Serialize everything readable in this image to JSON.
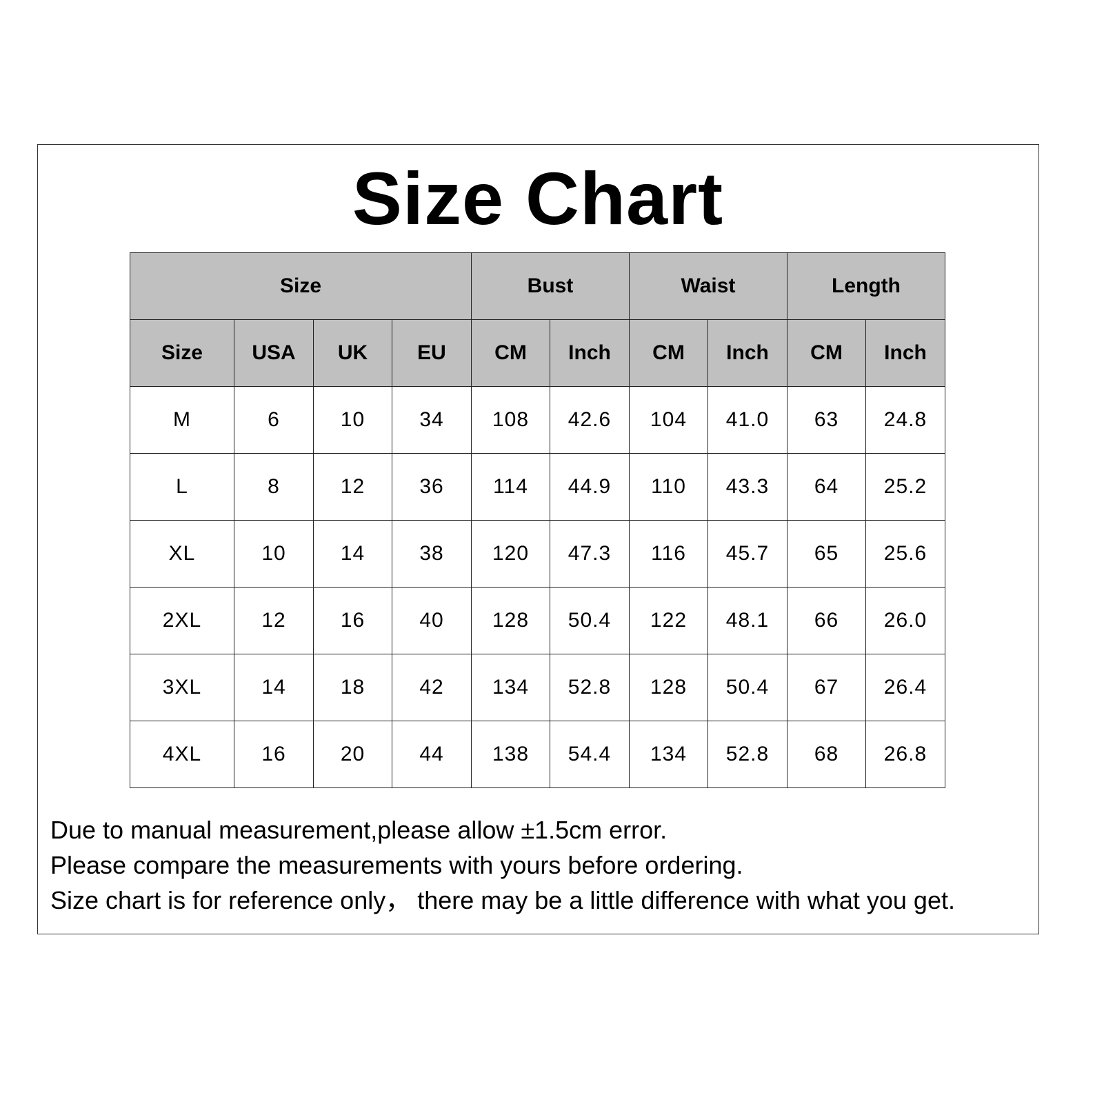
{
  "title": "Size Chart",
  "table": {
    "group_headers": [
      "Size",
      "Bust",
      "Waist",
      "Length"
    ],
    "sub_headers": [
      "Size",
      "USA",
      "UK",
      "EU",
      "CM",
      "Inch",
      "CM",
      "Inch",
      "CM",
      "Inch"
    ],
    "rows": [
      [
        "M",
        "6",
        "10",
        "34",
        "108",
        "42.6",
        "104",
        "41.0",
        "63",
        "24.8"
      ],
      [
        "L",
        "8",
        "12",
        "36",
        "114",
        "44.9",
        "110",
        "43.3",
        "64",
        "25.2"
      ],
      [
        "XL",
        "10",
        "14",
        "38",
        "120",
        "47.3",
        "116",
        "45.7",
        "65",
        "25.6"
      ],
      [
        "2XL",
        "12",
        "16",
        "40",
        "128",
        "50.4",
        "122",
        "48.1",
        "66",
        "26.0"
      ],
      [
        "3XL",
        "14",
        "18",
        "42",
        "134",
        "52.8",
        "128",
        "50.4",
        "67",
        "26.4"
      ],
      [
        "4XL",
        "16",
        "20",
        "44",
        "138",
        "54.4",
        "134",
        "52.8",
        "68",
        "26.8"
      ]
    ]
  },
  "notes": [
    "Due to manual measurement,please allow ±1.5cm error.",
    "Please compare the measurements with yours before ordering.",
    "Size chart is for reference only， there may be a little difference with what you get."
  ],
  "colors": {
    "header_bg": "#c0c0c0",
    "border": "#222222"
  }
}
